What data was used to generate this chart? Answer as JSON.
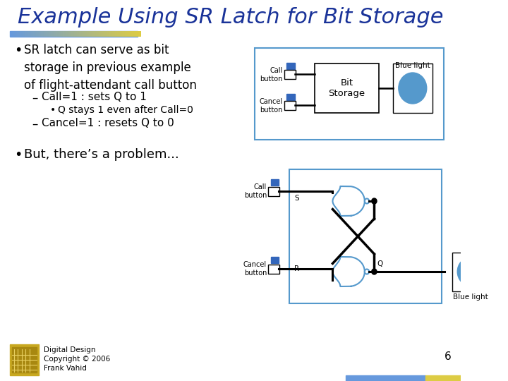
{
  "title": "Example Using SR Latch for Bit Storage",
  "title_color": "#1a3399",
  "bg_color": "#ffffff",
  "accent_left_color": "#6699dd",
  "accent_right_color": "#ddcc44",
  "box_color": "#5599cc",
  "button_blue": "#3366bb",
  "nor_color": "#5599cc",
  "light_circle_color": "#5599cc",
  "footer_text": "Digital Design\nCopyright © 2006\nFrank Vahid",
  "page_num": "6"
}
